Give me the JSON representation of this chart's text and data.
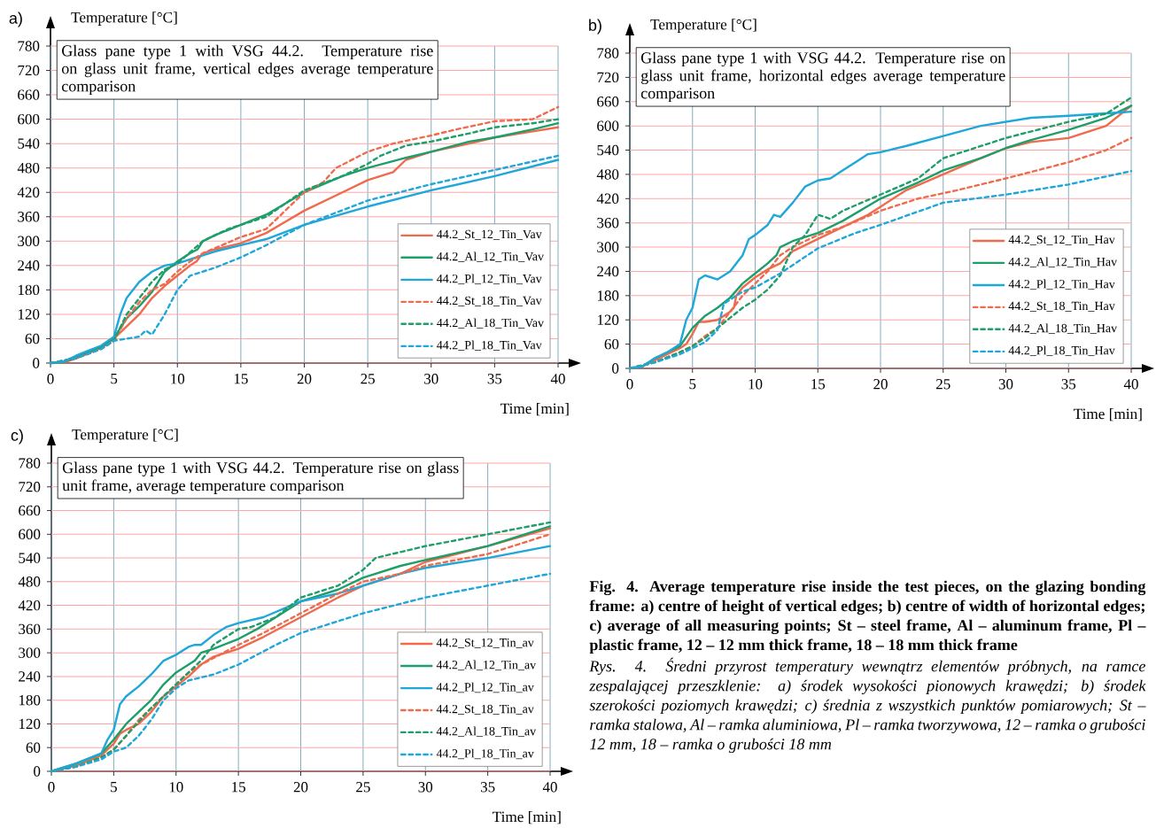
{
  "chart_data": [
    {
      "type": "line",
      "title": "Glass pane type 1 with VSG 44.2. Temperature rise on glass unit frame, vertical edges average temperature comparison",
      "xlabel": "Time [min]",
      "ylabel": "Temperature [°C]",
      "xlim": [
        0,
        40
      ],
      "ylim": [
        0,
        780
      ],
      "xticks": [
        0,
        5,
        10,
        15,
        20,
        25,
        30,
        35,
        40
      ],
      "yticks": [
        0,
        60,
        120,
        180,
        240,
        300,
        360,
        420,
        480,
        540,
        600,
        660,
        720,
        780
      ],
      "grid": true,
      "legend": "bottom right",
      "annotations": [
        "a)"
      ],
      "series": [
        {
          "name": "44.2_St_12_Tin_Vav",
          "color": "#ee6b4d",
          "line_style": "solid",
          "x": [
            0,
            1,
            2,
            3,
            4,
            5,
            6,
            7,
            8,
            9,
            10,
            11,
            11.5,
            12,
            13,
            15,
            17,
            20,
            23,
            25,
            27,
            28,
            30,
            33,
            35,
            38,
            40
          ],
          "values": [
            0,
            1,
            11,
            24,
            37,
            60,
            90,
            120,
            160,
            190,
            215,
            240,
            250,
            270,
            280,
            295,
            320,
            375,
            420,
            450,
            470,
            500,
            520,
            540,
            555,
            570,
            580
          ]
        },
        {
          "name": "44.2_Al_12_Tin_Vav",
          "color": "#1e9e6a",
          "line_style": "solid",
          "x": [
            0,
            1,
            2,
            3,
            4,
            5,
            6,
            7,
            8,
            9,
            10,
            11,
            11.6,
            12,
            13,
            15,
            17,
            20,
            23,
            25,
            28,
            30,
            33,
            35,
            38,
            40
          ],
          "values": [
            0,
            2,
            15,
            28,
            40,
            62,
            110,
            140,
            175,
            225,
            250,
            270,
            280,
            300,
            315,
            340,
            365,
            420,
            460,
            480,
            505,
            520,
            545,
            555,
            575,
            590
          ]
        },
        {
          "name": "44.2_Pl_12_Tin_Vav",
          "color": "#1ea7d9",
          "line_style": "solid",
          "x": [
            0,
            1,
            2,
            3,
            4,
            5,
            5.5,
            6,
            7,
            8,
            9,
            10,
            11,
            13,
            15,
            17,
            20,
            25,
            30,
            35,
            40
          ],
          "values": [
            0,
            3,
            18,
            31,
            43,
            65,
            120,
            160,
            200,
            225,
            240,
            245,
            255,
            275,
            290,
            305,
            340,
            385,
            425,
            460,
            500
          ]
        },
        {
          "name": "44.2_St_18_Tin_Vav",
          "color": "#ee6b4d",
          "line_style": "dotted",
          "x": [
            0,
            2,
            4,
            5,
            6,
            7,
            8,
            9,
            10,
            11,
            12,
            15,
            17,
            20,
            21.5,
            22.5,
            25,
            27,
            30,
            32,
            35,
            38,
            40
          ],
          "values": [
            0,
            12,
            35,
            55,
            110,
            150,
            180,
            195,
            225,
            250,
            270,
            310,
            330,
            420,
            445,
            480,
            520,
            540,
            560,
            575,
            595,
            600,
            630
          ]
        },
        {
          "name": "44.2_Al_18_Tin_Vav",
          "color": "#1e9e6a",
          "line_style": "dotted",
          "x": [
            0,
            2,
            4,
            5,
            6,
            7,
            8,
            9,
            10,
            12,
            14,
            17,
            20,
            23,
            25,
            26,
            28,
            30,
            33,
            35,
            38,
            40
          ],
          "values": [
            0,
            12,
            35,
            55,
            120,
            160,
            200,
            230,
            245,
            300,
            330,
            360,
            425,
            460,
            490,
            510,
            535,
            545,
            565,
            580,
            590,
            600
          ]
        },
        {
          "name": "44.2_Pl_18_Tin_Vav",
          "color": "#1ea7d9",
          "line_style": "dotted",
          "x": [
            0,
            2,
            4,
            5,
            6,
            7,
            7.5,
            8,
            9,
            10,
            11,
            13,
            15,
            17,
            20,
            25,
            30,
            35,
            40
          ],
          "values": [
            0,
            12,
            35,
            55,
            60,
            65,
            80,
            70,
            120,
            180,
            215,
            235,
            260,
            290,
            340,
            400,
            440,
            475,
            510
          ]
        }
      ]
    },
    {
      "type": "line",
      "title": "Glass pane type 1 with VSG 44.2. Temperature rise on glass unit frame, horizontal edges average temperature comparison",
      "xlabel": "Time [min]",
      "ylabel": "Temperature [°C]",
      "xlim": [
        0,
        40
      ],
      "ylim": [
        0,
        780
      ],
      "xticks": [
        0,
        5,
        10,
        15,
        20,
        25,
        30,
        35,
        40
      ],
      "yticks": [
        0,
        60,
        120,
        180,
        240,
        300,
        360,
        420,
        480,
        540,
        600,
        660,
        720,
        780
      ],
      "grid": true,
      "legend": "bottom right",
      "annotations": [
        "b)"
      ],
      "series": [
        {
          "name": "44.2_St_12_Tin_Hav",
          "color": "#ee6b4d",
          "line_style": "solid",
          "x": [
            0,
            1,
            2,
            3,
            4,
            4.5,
            5,
            5.5,
            6,
            7,
            8,
            8.3,
            8.5,
            9,
            10,
            11,
            12,
            13,
            15,
            17,
            19,
            20,
            22,
            25,
            28,
            30,
            32,
            35,
            38,
            40
          ],
          "values": [
            0,
            5,
            20,
            35,
            50,
            60,
            85,
            115,
            115,
            120,
            140,
            150,
            180,
            200,
            225,
            245,
            260,
            290,
            320,
            350,
            380,
            400,
            440,
            480,
            520,
            545,
            560,
            570,
            600,
            650
          ]
        },
        {
          "name": "44.2_Al_12_Tin_Hav",
          "color": "#1e9e6a",
          "line_style": "solid",
          "x": [
            0,
            1,
            2,
            3,
            4,
            5,
            6,
            7,
            8,
            9,
            10,
            11,
            11.7,
            12,
            13,
            15,
            17,
            20,
            23,
            25,
            28,
            30,
            32,
            35,
            38,
            40
          ],
          "values": [
            0,
            5,
            25,
            40,
            55,
            100,
            130,
            150,
            175,
            210,
            235,
            260,
            280,
            300,
            315,
            335,
            365,
            420,
            460,
            490,
            520,
            545,
            565,
            590,
            620,
            650
          ]
        },
        {
          "name": "44.2_Pl_12_Tin_Hav",
          "color": "#1ea7d9",
          "line_style": "solid",
          "x": [
            0,
            1,
            2,
            3,
            4,
            4.5,
            5,
            5.5,
            6,
            7,
            8,
            9,
            9.5,
            10,
            11,
            11.5,
            12,
            13,
            14,
            15,
            16,
            17,
            18,
            19,
            20,
            22,
            25,
            28,
            30,
            32,
            35,
            40
          ],
          "values": [
            0,
            5,
            25,
            40,
            60,
            120,
            150,
            220,
            230,
            220,
            240,
            280,
            320,
            330,
            355,
            380,
            375,
            410,
            450,
            465,
            470,
            490,
            510,
            530,
            535,
            550,
            575,
            600,
            610,
            620,
            625,
            635
          ]
        },
        {
          "name": "44.2_St_18_Tin_Hav",
          "color": "#ee6b4d",
          "line_style": "dotted",
          "x": [
            0,
            2,
            4,
            5,
            6,
            7,
            8,
            9,
            10,
            11,
            12,
            13,
            15,
            17,
            20,
            23,
            26,
            30,
            35,
            38,
            40
          ],
          "values": [
            0,
            15,
            40,
            55,
            80,
            100,
            140,
            180,
            210,
            240,
            280,
            300,
            330,
            350,
            390,
            420,
            440,
            470,
            510,
            540,
            570
          ]
        },
        {
          "name": "44.2_Al_18_Tin_Hav",
          "color": "#1e9e6a",
          "line_style": "dotted",
          "x": [
            0,
            2,
            4,
            5,
            6,
            7,
            8,
            9,
            10,
            11,
            12,
            13,
            14,
            15,
            16,
            17,
            20,
            23,
            25,
            28,
            30,
            35,
            38,
            40
          ],
          "values": [
            0,
            15,
            40,
            55,
            75,
            100,
            125,
            150,
            170,
            195,
            230,
            300,
            330,
            380,
            370,
            390,
            430,
            470,
            520,
            550,
            570,
            610,
            630,
            670
          ]
        },
        {
          "name": "44.2_Pl_18_Tin_Hav",
          "color": "#1ea7d9",
          "line_style": "dotted",
          "x": [
            0,
            2,
            4,
            5,
            6,
            7,
            7.5,
            8,
            9,
            10,
            12,
            15,
            18,
            20,
            25,
            30,
            35,
            40
          ],
          "values": [
            0,
            15,
            35,
            50,
            65,
            95,
            160,
            170,
            190,
            200,
            235,
            297,
            335,
            355,
            410,
            430,
            455,
            488
          ]
        }
      ]
    },
    {
      "type": "line",
      "title": "Glass pane type 1 with VSG 44.2. Temperature rise on glass unit frame, average temperature comparison",
      "xlabel": "Time [min]",
      "ylabel": "Temperature [°C]",
      "xlim": [
        0,
        40
      ],
      "ylim": [
        0,
        780
      ],
      "xticks": [
        0,
        5,
        10,
        15,
        20,
        25,
        30,
        35,
        40
      ],
      "yticks": [
        0,
        60,
        120,
        180,
        240,
        300,
        360,
        420,
        480,
        540,
        600,
        660,
        720,
        780
      ],
      "grid": true,
      "legend": "bottom right",
      "annotations": [
        "c)",
        "Fig. 4. Average temperature rise inside the test pieces, on the glazing bonding frame: a) centre of height of vertical edges; b) centre of width of horizontal edges; c) average of all measuring points; St – steel frame, Al – aluminum frame, Pl – plastic frame, 12 – 12 mm thick frame, 18 – 18 mm thick frame",
        "Rys. 4. Średni przyrost temperatury wewnątrz elementów próbnych, na ramce zespalającej przeszklenie: a) środek wysokości pionowych krawędzi; b) środek szerokości poziomych krawędzi; c) średnia z wszystkich punktów pomiarowych; St – ramka stalowa, Al – ramka aluminiowa, Pl – ramka tworzywowa, 12 – ramka o grubości 12 mm, 18 – ramka o grubości 18 mm"
      ],
      "series": [
        {
          "name": "44.2_St_12_Tin_av",
          "color": "#ee6b4d",
          "line_style": "solid",
          "x": [
            0,
            2,
            4,
            5,
            5.5,
            6,
            7,
            8,
            9,
            10,
            11,
            12,
            13,
            15,
            17,
            20,
            23,
            25,
            28,
            30,
            35,
            40
          ],
          "values": [
            0,
            15,
            40,
            70,
            95,
            105,
            120,
            150,
            190,
            215,
            240,
            270,
            290,
            310,
            340,
            390,
            440,
            470,
            500,
            530,
            570,
            615
          ]
        },
        {
          "name": "44.2_Al_12_Tin_av",
          "color": "#1e9e6a",
          "line_style": "solid",
          "x": [
            0,
            2,
            4,
            5,
            6,
            7,
            8,
            9,
            10,
            11,
            11.5,
            12,
            13,
            15,
            16.5,
            18,
            20,
            23,
            25,
            28,
            30,
            35,
            40
          ],
          "values": [
            0,
            20,
            45,
            80,
            120,
            150,
            180,
            220,
            250,
            270,
            280,
            300,
            310,
            335,
            360,
            390,
            430,
            460,
            490,
            520,
            535,
            570,
            620
          ]
        },
        {
          "name": "44.2_Pl_12_Tin_av",
          "color": "#1ea7d9",
          "line_style": "solid",
          "x": [
            0,
            2,
            4,
            4.5,
            5,
            5.5,
            6,
            7,
            8,
            9,
            10,
            11,
            11.5,
            12,
            13,
            14,
            15,
            17,
            20,
            23,
            25,
            28,
            30,
            35,
            40
          ],
          "values": [
            0,
            20,
            45,
            80,
            105,
            170,
            190,
            215,
            245,
            280,
            295,
            315,
            320,
            320,
            345,
            365,
            375,
            390,
            430,
            450,
            470,
            500,
            515,
            540,
            570
          ]
        },
        {
          "name": "44.2_St_18_Tin_av",
          "color": "#ee6b4d",
          "line_style": "dotted",
          "x": [
            0,
            2,
            4,
            5,
            6,
            7,
            8,
            9,
            10,
            11,
            12,
            15,
            17,
            20,
            23,
            25,
            28,
            30,
            35,
            40
          ],
          "values": [
            0,
            12,
            35,
            55,
            90,
            130,
            160,
            190,
            220,
            250,
            270,
            320,
            350,
            400,
            450,
            480,
            500,
            520,
            550,
            600
          ]
        },
        {
          "name": "44.2_Al_18_Tin_av",
          "color": "#1e9e6a",
          "line_style": "dotted",
          "x": [
            0,
            2,
            4,
            5,
            6,
            7,
            8,
            9,
            10,
            12,
            13,
            15,
            16,
            18,
            20,
            23,
            25,
            26,
            28,
            30,
            35,
            40
          ],
          "values": [
            0,
            12,
            35,
            55,
            90,
            125,
            160,
            190,
            220,
            280,
            320,
            360,
            365,
            390,
            440,
            470,
            510,
            540,
            555,
            570,
            600,
            630
          ]
        },
        {
          "name": "44.2_Pl_18_Tin_av",
          "color": "#1ea7d9",
          "line_style": "dotted",
          "x": [
            0,
            2,
            4,
            5,
            6,
            7,
            8,
            9,
            10,
            11,
            13,
            15,
            18,
            20,
            25,
            30,
            35,
            40
          ],
          "values": [
            0,
            12,
            30,
            50,
            60,
            90,
            130,
            180,
            210,
            230,
            245,
            270,
            320,
            350,
            400,
            440,
            470,
            500
          ]
        }
      ]
    }
  ]
}
